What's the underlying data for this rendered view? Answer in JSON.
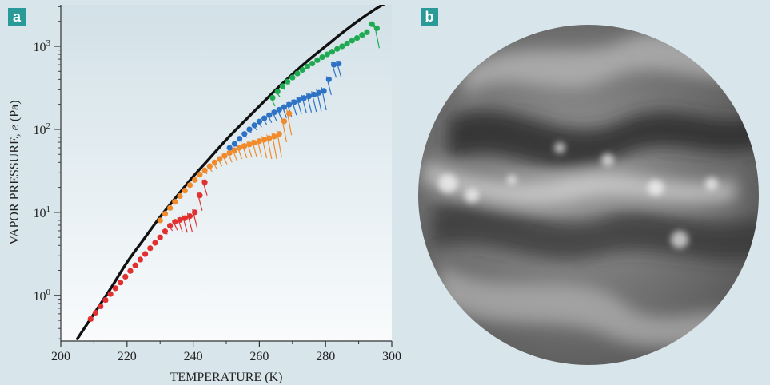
{
  "panels": {
    "a_label": "a",
    "b_label": "b"
  },
  "chart_data": {
    "type": "scatter",
    "title": "",
    "xlabel": "TEMPERATURE (K)",
    "ylabel_main": "VAPOR PRESSURE, ",
    "ylabel_symbol": "e",
    "ylabel_unit": " (Pa)",
    "xlim": [
      200,
      300
    ],
    "ylim_log10": [
      -0.55,
      3.5
    ],
    "y_scale": "log",
    "grid": false,
    "x_ticks": [
      "200",
      "220",
      "240",
      "260",
      "280",
      "300"
    ],
    "y_ticks": [
      {
        "base": "10",
        "exp": "0",
        "value": 1
      },
      {
        "base": "10",
        "exp": "1",
        "value": 10
      },
      {
        "base": "10",
        "exp": "2",
        "value": 100
      },
      {
        "base": "10",
        "exp": "3",
        "value": 1000
      }
    ],
    "curve": {
      "color": "#111111",
      "x": [
        205,
        210,
        215,
        220,
        225,
        230,
        235,
        240,
        245,
        250,
        255,
        260,
        265,
        270,
        275,
        280,
        285,
        290,
        295,
        298
      ],
      "y": [
        0.3,
        0.6,
        1.2,
        2.5,
        4.7,
        8.8,
        15.5,
        27,
        45,
        75,
        120,
        190,
        300,
        460,
        690,
        1000,
        1450,
        2050,
        2800,
        3300
      ]
    },
    "series": [
      {
        "color": "#e03030",
        "x": [
          209,
          210.5,
          212,
          213.5,
          215,
          216.5,
          218,
          219.5,
          221,
          222.5,
          224,
          225.5,
          227,
          228.5,
          230,
          231.5,
          233,
          234.5,
          236,
          237.5,
          239,
          240.5,
          242,
          243.5
        ],
        "y": [
          0.52,
          0.62,
          0.74,
          0.88,
          1.04,
          1.22,
          1.43,
          1.68,
          1.97,
          2.3,
          2.7,
          3.15,
          3.7,
          4.3,
          5.0,
          5.9,
          6.9,
          7.7,
          8.1,
          8.5,
          9.0,
          10,
          16,
          23
        ],
        "err": [
          0.03,
          0.03,
          0.04,
          0.05,
          0.05,
          0.06,
          0.07,
          0.08,
          0.1,
          0.12,
          0.14,
          0.16,
          0.18,
          0.2,
          0.3,
          0.45,
          0.9,
          1.6,
          2.3,
          2.8,
          3.2,
          3.5,
          5.5,
          7
        ]
      },
      {
        "color": "#f08a2a",
        "x": [
          230,
          231.5,
          233,
          234.5,
          236,
          237.5,
          239,
          240.5,
          242,
          243.5,
          245,
          246.5,
          248,
          249.5,
          251,
          252.5,
          254,
          255.5,
          257,
          258.5,
          260,
          261.5,
          263,
          264.5,
          266,
          267.5,
          269
        ],
        "y": [
          8,
          9.6,
          11.3,
          13.4,
          15.7,
          18.3,
          21.3,
          24.6,
          28.5,
          32,
          36,
          40,
          44,
          48,
          52,
          56,
          60,
          63,
          66,
          69,
          72,
          75,
          78,
          82,
          88,
          125,
          155
        ],
        "err": [
          0.4,
          0.5,
          0.6,
          0.7,
          0.8,
          0.9,
          1,
          1.2,
          1.5,
          3,
          5,
          7,
          8,
          10,
          12,
          14,
          16,
          18,
          20,
          23,
          26,
          30,
          34,
          38,
          42,
          55,
          70
        ]
      },
      {
        "color": "#2e72c6",
        "x": [
          251,
          252.5,
          254,
          255.5,
          257,
          258.5,
          260,
          261.5,
          263,
          264.5,
          266,
          267.5,
          269,
          270.5,
          272,
          273.5,
          275,
          276.5,
          278,
          279.5,
          281,
          282.5,
          284
        ],
        "y": [
          60,
          67,
          77,
          88,
          100,
          112,
          124,
          136,
          148,
          160,
          172,
          185,
          198,
          212,
          225,
          238,
          250,
          262,
          275,
          290,
          400,
          600,
          620
        ],
        "err": [
          4,
          5,
          6,
          8,
          10,
          14,
          18,
          22,
          28,
          34,
          40,
          48,
          56,
          64,
          72,
          80,
          90,
          100,
          110,
          120,
          140,
          180,
          200
        ]
      },
      {
        "color": "#1faa52",
        "x": [
          264,
          265.5,
          267,
          268.5,
          270,
          271.5,
          273,
          274.5,
          276,
          277.5,
          279,
          280.5,
          282,
          283.5,
          285,
          286.5,
          288,
          289.5,
          291,
          292.5,
          294,
          295.5
        ],
        "y": [
          240,
          285,
          330,
          375,
          420,
          470,
          520,
          570,
          620,
          680,
          740,
          800,
          860,
          930,
          1000,
          1080,
          1170,
          1260,
          1370,
          1480,
          1850,
          1650
        ],
        "err": [
          50,
          40,
          30,
          25,
          20,
          20,
          20,
          20,
          20,
          20,
          25,
          25,
          30,
          30,
          35,
          40,
          50,
          60,
          80,
          100,
          150,
          700
        ]
      }
    ]
  }
}
